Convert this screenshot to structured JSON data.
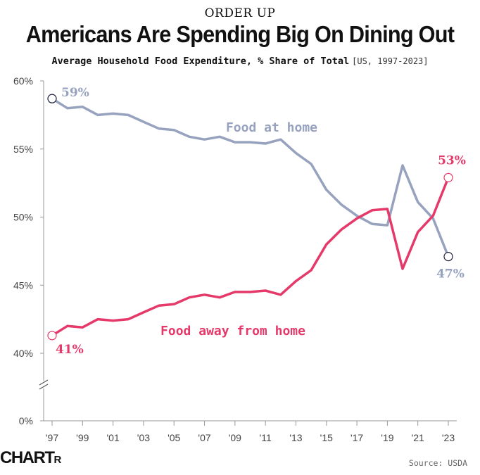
{
  "header": {
    "kicker": "ORDER UP",
    "title": "Americans Are Spending Big On Dining Out",
    "subtitle": "Average Household Food Expenditure, % Share of Total",
    "qualifier": "[US, 1997-2023]"
  },
  "footer": {
    "logo_text": "CHART",
    "logo_small": "R",
    "source": "Source: USDA"
  },
  "colors": {
    "home": "#97a2bf",
    "away": "#e5396a",
    "axis": "#999999",
    "text": "#444444"
  },
  "chart_data": {
    "type": "line",
    "title": "Americans Are Spending Big On Dining Out",
    "xlabel": "",
    "ylabel": "",
    "x": [
      1997,
      1998,
      1999,
      2000,
      2001,
      2002,
      2003,
      2004,
      2005,
      2006,
      2007,
      2008,
      2009,
      2010,
      2011,
      2012,
      2013,
      2014,
      2015,
      2016,
      2017,
      2018,
      2019,
      2020,
      2021,
      2022,
      2023
    ],
    "x_tick_labels": [
      "'97",
      "'99",
      "'01",
      "'03",
      "'05",
      "'07",
      "'09",
      "'11",
      "'13",
      "'15",
      "'17",
      "'19",
      "'21",
      "'23"
    ],
    "x_tick_years": [
      1997,
      1999,
      2001,
      2003,
      2005,
      2007,
      2009,
      2011,
      2013,
      2015,
      2017,
      2019,
      2021,
      2023
    ],
    "y_ticks": [
      0,
      40,
      45,
      50,
      55,
      60
    ],
    "y_tick_labels": [
      "0%",
      "40%",
      "45%",
      "50%",
      "55%",
      "60%"
    ],
    "ylim": [
      40,
      60
    ],
    "axis_break": true,
    "series": [
      {
        "name": "Food at home",
        "values": [
          58.7,
          58.0,
          58.1,
          57.5,
          57.6,
          57.5,
          57.0,
          56.5,
          56.4,
          55.9,
          55.7,
          55.9,
          55.5,
          55.5,
          55.4,
          55.7,
          54.7,
          53.9,
          52.0,
          50.9,
          50.1,
          49.5,
          49.4,
          53.8,
          51.1,
          49.9,
          47.1
        ],
        "start_label": "59%",
        "end_label": "47%"
      },
      {
        "name": "Food away from home",
        "values": [
          41.3,
          42.0,
          41.9,
          42.5,
          42.4,
          42.5,
          43.0,
          43.5,
          43.6,
          44.1,
          44.3,
          44.1,
          44.5,
          44.5,
          44.6,
          44.3,
          45.3,
          46.1,
          48.0,
          49.1,
          49.9,
          50.5,
          50.6,
          46.2,
          48.9,
          50.1,
          52.9
        ],
        "start_label": "41%",
        "end_label": "53%"
      }
    ]
  }
}
